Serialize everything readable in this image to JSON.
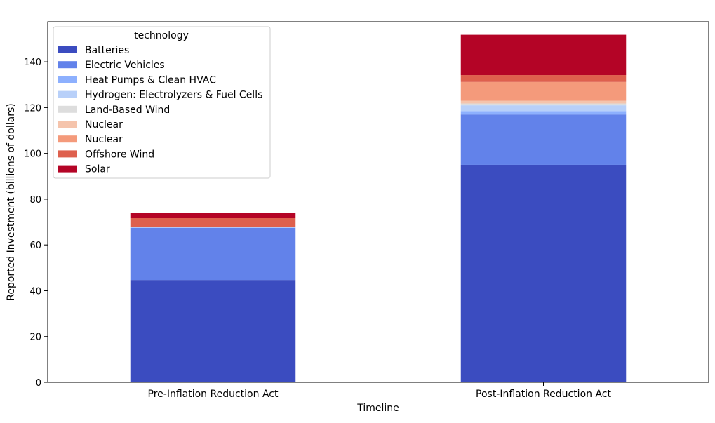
{
  "chart_data": {
    "type": "bar",
    "stacked": true,
    "categories": [
      "Pre-Inflation Reduction Act",
      "Post-Inflation Reduction Act"
    ],
    "xlabel": "Timeline",
    "ylabel": "Reported Investment (billions of dollars)",
    "ylim": [
      0,
      157.5
    ],
    "yticks": [
      0,
      20,
      40,
      60,
      80,
      100,
      120,
      140
    ],
    "grid": false,
    "legend": {
      "title": "technology",
      "placement": "top-left"
    },
    "series": [
      {
        "name": "Batteries",
        "color": "#3b4cc0",
        "values": [
          44.7,
          95.0
        ]
      },
      {
        "name": "Electric Vehicles",
        "color": "#6282ea",
        "values": [
          22.8,
          22.0
        ]
      },
      {
        "name": "Heat Pumps & Clean HVAC",
        "color": "#8db0fe",
        "values": [
          0.1,
          1.5
        ]
      },
      {
        "name": "Hydrogen: Electrolyzers & Fuel Cells",
        "color": "#b8d0f9",
        "values": [
          0.1,
          2.5
        ]
      },
      {
        "name": "Land-Based Wind",
        "color": "#dddddd",
        "values": [
          0.1,
          0.8
        ]
      },
      {
        "name": "Nuclear",
        "color": "#f5c4ac",
        "values": [
          0.1,
          1.2
        ]
      },
      {
        "name": "Nuclear",
        "color": "#f49a7b",
        "values": [
          0.1,
          8.2
        ]
      },
      {
        "name": "Offshore Wind",
        "color": "#de604d",
        "values": [
          3.7,
          3.0
        ]
      },
      {
        "name": "Solar",
        "color": "#b40426",
        "values": [
          2.3,
          17.6
        ]
      }
    ]
  }
}
